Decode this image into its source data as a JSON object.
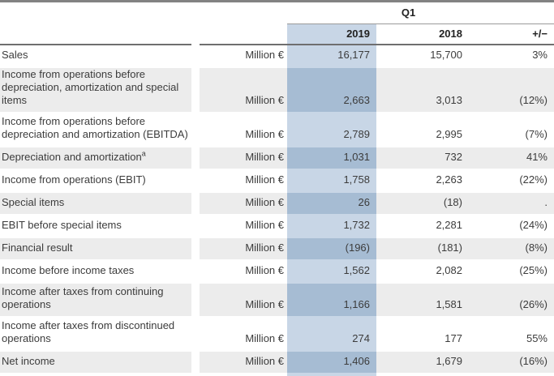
{
  "header": {
    "period_label": "Q1",
    "year_columns": [
      "2019",
      "2018"
    ],
    "change_label": "+/−",
    "highlighted_year": "2019"
  },
  "rows": [
    {
      "label": "Sales",
      "footnote": "",
      "unit": "Million €",
      "shaded": false,
      "values": {
        "y2019": "16,177",
        "y2018": "15,700",
        "change": "3%"
      }
    },
    {
      "label": "Income from operations before\ndepreciation, amortization and special\nitems",
      "footnote": "",
      "unit": "Million €",
      "shaded": true,
      "values": {
        "y2019": "2,663",
        "y2018": "3,013",
        "change": "(12%)"
      }
    },
    {
      "label": "Income from operations before\ndepreciation and amortization (EBITDA)",
      "footnote": "",
      "unit": "Million €",
      "shaded": false,
      "values": {
        "y2019": "2,789",
        "y2018": "2,995",
        "change": "(7%)"
      }
    },
    {
      "label": "Depreciation and amortization",
      "footnote": "a",
      "unit": "Million €",
      "shaded": true,
      "values": {
        "y2019": "1,031",
        "y2018": "732",
        "change": "41%"
      }
    },
    {
      "label": "Income from operations (EBIT)",
      "footnote": "",
      "unit": "Million €",
      "shaded": false,
      "values": {
        "y2019": "1,758",
        "y2018": "2,263",
        "change": "(22%)"
      }
    },
    {
      "label": "Special items",
      "footnote": "",
      "unit": "Million €",
      "shaded": true,
      "values": {
        "y2019": "26",
        "y2018": "(18)",
        "change": "."
      }
    },
    {
      "label": "EBIT before special items",
      "footnote": "",
      "unit": "Million €",
      "shaded": false,
      "values": {
        "y2019": "1,732",
        "y2018": "2,281",
        "change": "(24%)"
      }
    },
    {
      "label": "Financial result",
      "footnote": "",
      "unit": "Million €",
      "shaded": true,
      "values": {
        "y2019": "(196)",
        "y2018": "(181)",
        "change": "(8%)"
      }
    },
    {
      "label": "Income before income taxes",
      "footnote": "",
      "unit": "Million €",
      "shaded": false,
      "values": {
        "y2019": "1,562",
        "y2018": "2,082",
        "change": "(25%)"
      }
    },
    {
      "label": "Income after taxes from continuing\noperations",
      "footnote": "",
      "unit": "Million €",
      "shaded": true,
      "values": {
        "y2019": "1,166",
        "y2018": "1,581",
        "change": "(26%)"
      }
    },
    {
      "label": "Income after taxes from discontinued\noperations",
      "footnote": "",
      "unit": "Million €",
      "shaded": false,
      "values": {
        "y2019": "274",
        "y2018": "177",
        "change": "55%"
      }
    },
    {
      "label": "Net income",
      "footnote": "",
      "unit": "Million €",
      "shaded": true,
      "values": {
        "y2019": "1,406",
        "y2018": "1,679",
        "change": "(16%)"
      }
    }
  ],
  "colors": {
    "highlight_light": "#c8d6e6",
    "highlight_dark": "#a6bcd3",
    "row_shade": "#ececec",
    "rule_dark": "#6f6f6f",
    "rule_light": "#9a9a9a",
    "top_bar": "#828282",
    "text": "#3c3c3c",
    "header_text": "#222222"
  }
}
